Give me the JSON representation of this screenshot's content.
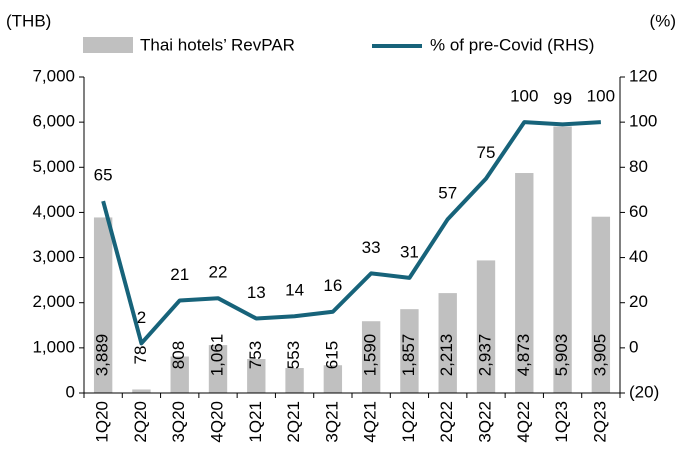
{
  "chart_data": {
    "type": "bar_line",
    "y_label": "(THB)",
    "y2_label": "(%)",
    "categories": [
      "1Q20",
      "2Q20",
      "3Q20",
      "4Q20",
      "1Q21",
      "2Q21",
      "3Q21",
      "4Q21",
      "1Q22",
      "2Q22",
      "3Q22",
      "4Q22",
      "1Q23",
      "2Q23"
    ],
    "series": [
      {
        "name": "Thai hotels’ RevPAR",
        "type": "bar",
        "color": "#c0c0c0",
        "values": [
          3889,
          78,
          808,
          1061,
          753,
          553,
          615,
          1590,
          1857,
          2213,
          2937,
          4873,
          5903,
          3905
        ],
        "value_labels": [
          "3,889",
          "78",
          "808",
          "1,061",
          "753",
          "553",
          "615",
          "1,590",
          "1,857",
          "2,213",
          "2,937",
          "4,873",
          "5,903",
          "3,905"
        ]
      },
      {
        "name": "% of pre-Covid (RHS)",
        "type": "line",
        "axis": "y2",
        "color": "#17637a",
        "values": [
          65,
          2,
          21,
          22,
          13,
          14,
          16,
          33,
          31,
          57,
          75,
          100,
          99,
          100
        ]
      }
    ],
    "ylim": [
      0,
      7000
    ],
    "yticks": [
      0,
      {
        "value": 1000,
        "label": "1,000"
      },
      {
        "value": 2000,
        "label": "2,000"
      },
      {
        "value": 3000,
        "label": "3,000"
      },
      {
        "value": 4000,
        "label": "4,000"
      },
      {
        "value": 5000,
        "label": "5,000"
      },
      {
        "value": 6000,
        "label": "6,000"
      },
      {
        "value": 7000,
        "label": "7,000"
      }
    ],
    "y2lim": [
      -20,
      120
    ],
    "y2ticks": [
      {
        "value": -20,
        "label": "(20)"
      },
      0,
      20,
      40,
      60,
      80,
      100,
      120
    ],
    "legend": "top"
  }
}
